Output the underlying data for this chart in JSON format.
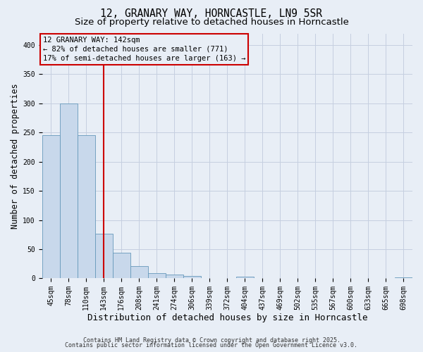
{
  "title1": "12, GRANARY WAY, HORNCASTLE, LN9 5SR",
  "title2": "Size of property relative to detached houses in Horncastle",
  "xlabel": "Distribution of detached houses by size in Horncastle",
  "ylabel": "Number of detached properties",
  "bin_labels": [
    "45sqm",
    "78sqm",
    "110sqm",
    "143sqm",
    "176sqm",
    "208sqm",
    "241sqm",
    "274sqm",
    "306sqm",
    "339sqm",
    "372sqm",
    "404sqm",
    "437sqm",
    "469sqm",
    "502sqm",
    "535sqm",
    "567sqm",
    "600sqm",
    "633sqm",
    "665sqm",
    "698sqm"
  ],
  "bar_heights": [
    245,
    300,
    245,
    76,
    44,
    21,
    9,
    7,
    4,
    0,
    0,
    3,
    0,
    0,
    0,
    0,
    0,
    0,
    0,
    0,
    2
  ],
  "bar_color": "#c8d8eb",
  "bar_edge_color": "#6699bb",
  "grid_color": "#c5cfe0",
  "background_color": "#e8eef6",
  "vline_x_index": 3,
  "vline_color": "#cc0000",
  "annotation_line1": "12 GRANARY WAY: 142sqm",
  "annotation_line2": "← 82% of detached houses are smaller (771)",
  "annotation_line3": "17% of semi-detached houses are larger (163) →",
  "annotation_box_color": "#cc0000",
  "ylim": [
    0,
    420
  ],
  "yticks": [
    0,
    50,
    100,
    150,
    200,
    250,
    300,
    350,
    400
  ],
  "footer1": "Contains HM Land Registry data © Crown copyright and database right 2025.",
  "footer2": "Contains public sector information licensed under the Open Government Licence v3.0.",
  "title_fontsize": 10.5,
  "subtitle_fontsize": 9.5,
  "xlabel_fontsize": 9,
  "ylabel_fontsize": 8.5,
  "tick_fontsize": 7,
  "annotation_fontsize": 7.5,
  "footer_fontsize": 6
}
